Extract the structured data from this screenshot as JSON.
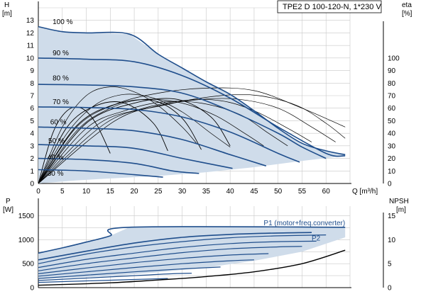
{
  "chart_data": [
    {
      "type": "line",
      "title": "TPE2 D 100-120-N, 1*230 V",
      "xlabel": "Q [m³/h]",
      "ylabel": "H\n[m]",
      "y2label": "eta\n[%]",
      "xlim": [
        0,
        65
      ],
      "ylim": [
        0,
        14
      ],
      "y2lim": [
        0,
        140
      ],
      "xticks": [
        "0",
        "5",
        "10",
        "15",
        "20",
        "25",
        "30",
        "35",
        "40",
        "45",
        "50",
        "55",
        "60"
      ],
      "yticks": [
        "0",
        "1",
        "2",
        "3",
        "4",
        "5",
        "6",
        "7",
        "8",
        "9",
        "10",
        "11",
        "12",
        "13"
      ],
      "y2ticks": [
        "0",
        "10",
        "20",
        "30",
        "40",
        "50",
        "60",
        "70",
        "80",
        "90",
        "100"
      ],
      "grid": true,
      "speed_labels": [
        {
          "text": "100 %",
          "q": 1.5,
          "h": 12.6
        },
        {
          "text": "90 %",
          "q": 1.5,
          "h": 10.1
        },
        {
          "text": "80 %",
          "q": 1.5,
          "h": 8.1
        },
        {
          "text": "70 %",
          "q": 1.5,
          "h": 6.2
        },
        {
          "text": "60 %",
          "q": 1.0,
          "h": 4.6
        },
        {
          "text": "50 %",
          "q": 0.6,
          "h": 3.1
        },
        {
          "text": "40 %",
          "q": 0.4,
          "h": 1.8
        },
        {
          "text": "30 %",
          "q": 0.4,
          "h": 0.5
        }
      ],
      "envelope": [
        [
          0,
          12.5
        ],
        [
          5,
          12.1
        ],
        [
          10,
          12
        ],
        [
          19,
          11.9
        ],
        [
          25,
          10.3
        ],
        [
          30,
          9.2
        ],
        [
          35,
          8.1
        ],
        [
          40,
          7.1
        ],
        [
          45,
          5.8
        ],
        [
          50,
          4.4
        ],
        [
          55,
          3.2
        ],
        [
          60,
          2.6
        ],
        [
          64,
          2.3
        ],
        [
          64,
          2.2
        ],
        [
          55,
          1.8
        ],
        [
          45,
          1.3
        ],
        [
          35,
          0.9
        ],
        [
          25,
          0.6
        ],
        [
          15,
          0.4
        ],
        [
          8,
          0.25
        ],
        [
          0,
          0
        ]
      ],
      "series": [
        {
          "name": "100 %",
          "values": [
            [
              0,
              12.5
            ],
            [
              5,
              12.1
            ],
            [
              10,
              12
            ],
            [
              19,
              11.9
            ],
            [
              25,
              10.3
            ],
            [
              30,
              9.2
            ],
            [
              35,
              8.1
            ],
            [
              40,
              7.1
            ],
            [
              45,
              5.8
            ],
            [
              50,
              4.4
            ],
            [
              55,
              3.2
            ],
            [
              60,
              2.6
            ],
            [
              64,
              2.3
            ]
          ]
        },
        {
          "name": "90 %",
          "values": [
            [
              0,
              10
            ],
            [
              10,
              9.9
            ],
            [
              20,
              9.7
            ],
            [
              30,
              8.6
            ],
            [
              40,
              6.8
            ],
            [
              50,
              4.5
            ],
            [
              60,
              2.4
            ],
            [
              64,
              2.2
            ]
          ]
        },
        {
          "name": "80 %",
          "values": [
            [
              0,
              7.9
            ],
            [
              10,
              7.85
            ],
            [
              20,
              7.7
            ],
            [
              30,
              7.2
            ],
            [
              40,
              5.8
            ],
            [
              50,
              4
            ],
            [
              55,
              2.9
            ],
            [
              60,
              2
            ]
          ]
        },
        {
          "name": "70 %",
          "values": [
            [
              0,
              6.1
            ],
            [
              10,
              6.05
            ],
            [
              20,
              5.9
            ],
            [
              30,
              5.3
            ],
            [
              40,
              4.1
            ],
            [
              50,
              2.4
            ],
            [
              54.5,
              1.7
            ]
          ]
        },
        {
          "name": "60 %",
          "values": [
            [
              0,
              4.5
            ],
            [
              10,
              4.4
            ],
            [
              20,
              4.2
            ],
            [
              30,
              3.5
            ],
            [
              40,
              2.3
            ],
            [
              47.5,
              1.4
            ]
          ]
        },
        {
          "name": "50 %",
          "values": [
            [
              0,
              3.1
            ],
            [
              10,
              3
            ],
            [
              20,
              2.8
            ],
            [
              30,
              2
            ],
            [
              40.5,
              1.2
            ]
          ]
        },
        {
          "name": "40 %",
          "values": [
            [
              0,
              2
            ],
            [
              10,
              1.9
            ],
            [
              20,
              1.6
            ],
            [
              28,
              1
            ],
            [
              33.5,
              0.8
            ]
          ]
        },
        {
          "name": "30 %",
          "values": [
            [
              0,
              1.1
            ],
            [
              10,
              1
            ],
            [
              20,
              0.7
            ],
            [
              26,
              0.5
            ]
          ]
        }
      ],
      "eta_curves": [
        {
          "values": [
            [
              0,
              0
            ],
            [
              5,
              45
            ],
            [
              10,
              70
            ],
            [
              15,
              77
            ],
            [
              20,
              73
            ],
            [
              25,
              62
            ],
            [
              30,
              45
            ],
            [
              33,
              32
            ]
          ]
        },
        {
          "values": [
            [
              0,
              0
            ],
            [
              6,
              40
            ],
            [
              12,
              63
            ],
            [
              18,
              71
            ],
            [
              24,
              68
            ],
            [
              30,
              57
            ],
            [
              36,
              40
            ],
            [
              40,
              29
            ]
          ]
        },
        {
          "values": [
            [
              0,
              0
            ],
            [
              8,
              42
            ],
            [
              15,
              60
            ],
            [
              22,
              67
            ],
            [
              30,
              64
            ],
            [
              37,
              54
            ],
            [
              43,
              40
            ],
            [
              47,
              30
            ]
          ]
        },
        {
          "values": [
            [
              0,
              0
            ],
            [
              10,
              44
            ],
            [
              18,
              58
            ],
            [
              26,
              65
            ],
            [
              34,
              64
            ],
            [
              42,
              55
            ],
            [
              48,
              40
            ],
            [
              52,
              30
            ]
          ]
        },
        {
          "values": [
            [
              0,
              0
            ],
            [
              12,
              46
            ],
            [
              21,
              59
            ],
            [
              30,
              66
            ],
            [
              38,
              66
            ],
            [
              45,
              58
            ],
            [
              52,
              44
            ],
            [
              57,
              33
            ]
          ]
        },
        {
          "values": [
            [
              0,
              0
            ],
            [
              14,
              48
            ],
            [
              24,
              61
            ],
            [
              34,
              67
            ],
            [
              42,
              67
            ],
            [
              50,
              60
            ],
            [
              57,
              45
            ],
            [
              62,
              33
            ]
          ]
        },
        {
          "values": [
            [
              0,
              0
            ],
            [
              16,
              50
            ],
            [
              27,
              63
            ],
            [
              38,
              70
            ],
            [
              46,
              70
            ],
            [
              54,
              62
            ],
            [
              60,
              48
            ],
            [
              64,
              36
            ]
          ]
        },
        {
          "values": [
            [
              0,
              0
            ],
            [
              8,
              45
            ],
            [
              16,
              63
            ],
            [
              25,
              72
            ],
            [
              35,
              76
            ],
            [
              45,
              74
            ],
            [
              55,
              60
            ],
            [
              64,
              45
            ]
          ]
        }
      ],
      "eta_short": [
        {
          "values": [
            [
              0,
              0
            ],
            [
              3,
              40
            ],
            [
              6,
              58
            ],
            [
              9,
              60
            ],
            [
              12,
              48
            ],
            [
              15,
              24
            ]
          ]
        },
        {
          "values": [
            [
              0,
              0
            ],
            [
              6,
              45
            ],
            [
              12,
              62
            ],
            [
              18,
              64
            ],
            [
              24,
              48
            ],
            [
              27,
              26
            ]
          ]
        },
        {
          "values": [
            [
              0,
              0
            ],
            [
              8,
              46
            ],
            [
              16,
              63
            ],
            [
              24,
              66
            ],
            [
              30,
              52
            ],
            [
              34,
              27
            ]
          ]
        },
        {
          "values": [
            [
              0,
              0
            ],
            [
              10,
              48
            ],
            [
              20,
              64
            ],
            [
              29,
              67
            ],
            [
              36,
              53
            ],
            [
              40,
              30
            ]
          ]
        }
      ]
    },
    {
      "type": "line",
      "xlabel": "",
      "ylabel": "P\n[W]",
      "y2label": "NPSH\n[m]",
      "xlim": [
        0,
        65
      ],
      "ylim": [
        0,
        1700
      ],
      "y2lim": [
        0,
        17
      ],
      "yticks": [
        "0",
        "500",
        "1000",
        "1500"
      ],
      "y2ticks": [
        "0",
        "5",
        "10",
        "15"
      ],
      "grid": true,
      "envelope": [
        [
          0,
          720
        ],
        [
          5,
          830
        ],
        [
          10,
          950
        ],
        [
          15,
          1080
        ],
        [
          19,
          1260
        ],
        [
          64,
          1260
        ],
        [
          64,
          1050
        ],
        [
          55,
          750
        ],
        [
          45,
          560
        ],
        [
          35,
          420
        ],
        [
          25,
          320
        ],
        [
          15,
          240
        ],
        [
          0,
          180
        ]
      ],
      "series": [
        {
          "name": "P1 (motor+freq.converter)",
          "values": [
            [
              0,
              720
            ],
            [
              5,
              830
            ],
            [
              10,
              950
            ],
            [
              15,
              1080
            ],
            [
              19,
              1260
            ],
            [
              64,
              1260
            ]
          ]
        },
        {
          "name": "P2",
          "values": [
            [
              0,
              580
            ],
            [
              10,
              760
            ],
            [
              20,
              930
            ],
            [
              30,
              1050
            ],
            [
              40,
              1110
            ],
            [
              50,
              1140
            ],
            [
              57,
              1150
            ]
          ]
        }
      ],
      "power_curves": [
        {
          "values": [
            [
              0,
              500
            ],
            [
              10,
              700
            ],
            [
              20,
              850
            ],
            [
              30,
              960
            ],
            [
              40,
              1040
            ],
            [
              50,
              1080
            ],
            [
              60,
              1100
            ]
          ]
        },
        {
          "values": [
            [
              0,
              420
            ],
            [
              10,
              590
            ],
            [
              20,
              720
            ],
            [
              30,
              840
            ],
            [
              40,
              920
            ],
            [
              50,
              960
            ],
            [
              58,
              970
            ]
          ]
        },
        {
          "values": [
            [
              0,
              350
            ],
            [
              10,
              500
            ],
            [
              20,
              620
            ],
            [
              30,
              730
            ],
            [
              40,
              810
            ],
            [
              50,
              850
            ],
            [
              55,
              860
            ]
          ]
        },
        {
          "values": [
            [
              0,
              290
            ],
            [
              10,
              410
            ],
            [
              20,
              520
            ],
            [
              30,
              610
            ],
            [
              40,
              680
            ],
            [
              48,
              710
            ]
          ]
        },
        {
          "values": [
            [
              0,
              240
            ],
            [
              10,
              330
            ],
            [
              20,
              420
            ],
            [
              30,
              500
            ],
            [
              40,
              560
            ],
            [
              45,
              580
            ]
          ]
        },
        {
          "values": [
            [
              0,
              190
            ],
            [
              10,
              260
            ],
            [
              20,
              330
            ],
            [
              30,
              390
            ],
            [
              38,
              430
            ]
          ]
        },
        {
          "values": [
            [
              0,
              150
            ],
            [
              10,
              200
            ],
            [
              20,
              250
            ],
            [
              28,
              290
            ],
            [
              32,
              300
            ]
          ]
        },
        {
          "values": [
            [
              0,
              110
            ],
            [
              10,
              140
            ],
            [
              20,
              170
            ],
            [
              27,
              190
            ]
          ]
        }
      ],
      "npsh": [
        [
          0,
          0.5
        ],
        [
          15,
          1
        ],
        [
          25,
          1.6
        ],
        [
          35,
          2.3
        ],
        [
          45,
          3.3
        ],
        [
          55,
          5
        ],
        [
          64,
          7.8
        ]
      ],
      "labels": [
        {
          "text": "P1 (motor+freq.converter)",
          "q": 47,
          "p": 1300
        },
        {
          "text": "P2",
          "q": 57,
          "p": 980
        }
      ]
    }
  ]
}
